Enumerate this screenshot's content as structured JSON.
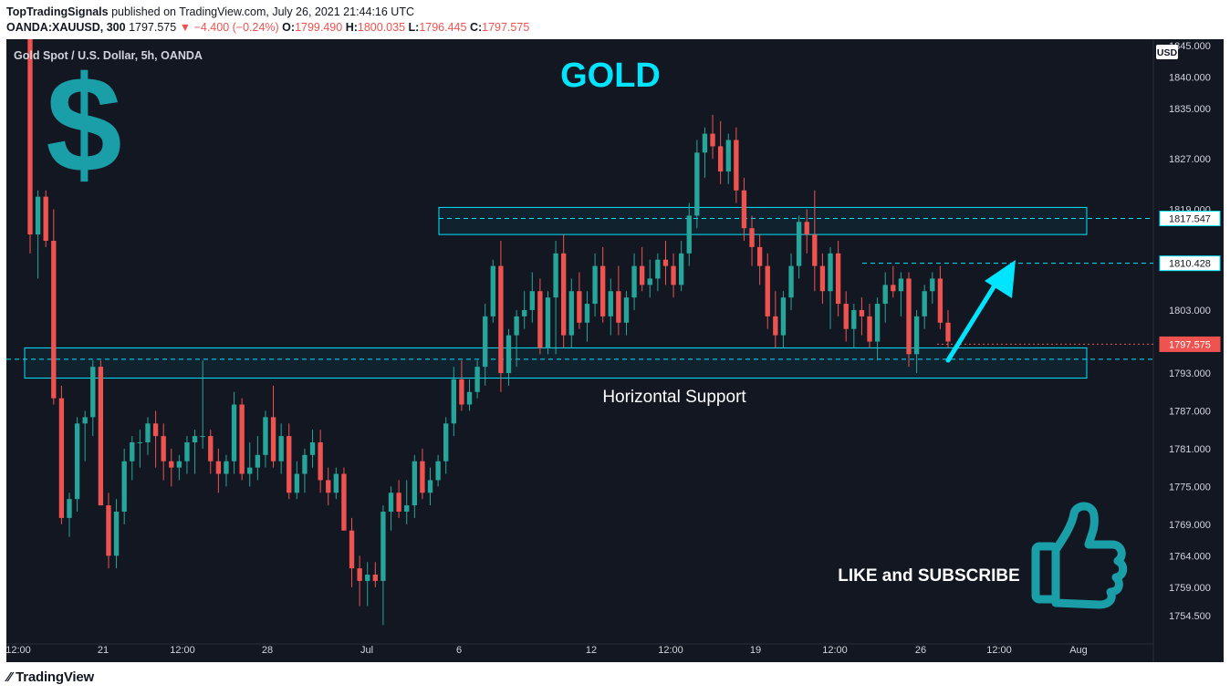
{
  "header": {
    "publisher": "TopTradingSignals",
    "published_text": "published on TradingView.com, July 26, 2021 21:44:16 UTC",
    "symbol": "OANDA:XAUUSD, 300",
    "last": "1797.575",
    "change": "−4.400 (−0.24%)",
    "o_label": "O:",
    "o": "1799.490",
    "h_label": "H:",
    "h": "1800.035",
    "l_label": "L:",
    "l": "1796.445",
    "c_label": "C:",
    "c": "1797.575"
  },
  "footer": {
    "logo_text": "TradingView"
  },
  "colors": {
    "background": "#131722",
    "up": "#26a69a",
    "down": "#ef5350",
    "cyan": "#00e5ff",
    "dollar": "#1a9ea8",
    "thumb": "#1a9ea8"
  },
  "chart_data": {
    "type": "candlestick",
    "title": "Gold Spot / U.S. Dollar, 5h, OANDA",
    "headline": "GOLD",
    "currency_label": "USD",
    "ylim": [
      1750.0,
      1846.0
    ],
    "y_ticks": [
      "1845.000",
      "1840.000",
      "1835.000",
      "1827.000",
      "1819.000",
      "1803.000",
      "1793.000",
      "1787.000",
      "1781.000",
      "1775.000",
      "1769.000",
      "1764.000",
      "1759.000",
      "1754.500"
    ],
    "x_ticks": [
      "12:00",
      "21",
      "12:00",
      "28",
      "Jul",
      "6",
      "12",
      "12:00",
      "19",
      "12:00",
      "26",
      "12:00",
      "Aug"
    ],
    "price_labels": [
      {
        "value": "1817.547",
        "style": "cyan"
      },
      {
        "value": "1810.428",
        "style": "cyan"
      },
      {
        "value": "1797.575",
        "style": "red"
      }
    ],
    "resistance_zone": [
      1815.0,
      1819.3
    ],
    "support_zone": [
      1792.2,
      1797.0
    ],
    "annotations": [
      "Horizontal Support",
      "LIKE and SUBSCRIBE"
    ],
    "ohlc": [
      [
        1846,
        1846,
        1812,
        1815
      ],
      [
        1815,
        1822,
        1808,
        1821
      ],
      [
        1821,
        1822,
        1813,
        1814
      ],
      [
        1814,
        1819,
        1788,
        1789
      ],
      [
        1789,
        1791,
        1769,
        1770
      ],
      [
        1770,
        1774,
        1767,
        1773
      ],
      [
        1773,
        1786,
        1771,
        1785
      ],
      [
        1785,
        1787,
        1779,
        1786
      ],
      [
        1786,
        1795,
        1783,
        1794
      ],
      [
        1794,
        1795,
        1772,
        1772
      ],
      [
        1772,
        1774,
        1762,
        1764
      ],
      [
        1764,
        1773,
        1762,
        1771
      ],
      [
        1771,
        1781,
        1769,
        1779
      ],
      [
        1779,
        1783,
        1776,
        1782
      ],
      [
        1782,
        1784,
        1778,
        1782
      ],
      [
        1782,
        1786,
        1780,
        1785
      ],
      [
        1785,
        1787,
        1778,
        1783
      ],
      [
        1783,
        1785,
        1776,
        1779
      ],
      [
        1779,
        1781,
        1775,
        1778
      ],
      [
        1778,
        1780,
        1776,
        1779
      ],
      [
        1779,
        1783,
        1777,
        1782
      ],
      [
        1782,
        1784,
        1777,
        1783
      ],
      [
        1783,
        1795,
        1781,
        1783
      ],
      [
        1783,
        1784,
        1777,
        1779
      ],
      [
        1779,
        1781,
        1774,
        1777
      ],
      [
        1777,
        1780,
        1775,
        1779
      ],
      [
        1779,
        1790,
        1777,
        1788
      ],
      [
        1788,
        1789,
        1776,
        1777
      ],
      [
        1777,
        1782,
        1775,
        1778
      ],
      [
        1778,
        1783,
        1776,
        1780
      ],
      [
        1780,
        1787,
        1778,
        1786
      ],
      [
        1786,
        1791,
        1778,
        1779
      ],
      [
        1779,
        1785,
        1777,
        1783
      ],
      [
        1783,
        1785,
        1773,
        1774
      ],
      [
        1774,
        1779,
        1773,
        1777
      ],
      [
        1777,
        1781,
        1774,
        1780
      ],
      [
        1780,
        1784,
        1778,
        1782
      ],
      [
        1782,
        1784,
        1774,
        1776
      ],
      [
        1776,
        1778,
        1772,
        1774
      ],
      [
        1774,
        1778,
        1773,
        1777
      ],
      [
        1777,
        1778,
        1768,
        1768
      ],
      [
        1768,
        1770,
        1759,
        1762
      ],
      [
        1762,
        1764,
        1756,
        1760
      ],
      [
        1760,
        1763,
        1756,
        1761
      ],
      [
        1761,
        1763,
        1759,
        1760
      ],
      [
        1760,
        1772,
        1753,
        1771
      ],
      [
        1771,
        1775,
        1768,
        1774
      ],
      [
        1774,
        1776,
        1770,
        1771
      ],
      [
        1771,
        1776,
        1769,
        1772
      ],
      [
        1772,
        1780,
        1770,
        1779
      ],
      [
        1779,
        1781,
        1773,
        1774
      ],
      [
        1774,
        1778,
        1772,
        1776
      ],
      [
        1776,
        1780,
        1775,
        1779
      ],
      [
        1779,
        1786,
        1777,
        1785
      ],
      [
        1785,
        1794,
        1783,
        1792
      ],
      [
        1792,
        1795,
        1787,
        1788
      ],
      [
        1788,
        1792,
        1787,
        1790
      ],
      [
        1790,
        1795,
        1789,
        1794
      ],
      [
        1794,
        1804,
        1791,
        1802
      ],
      [
        1802,
        1811,
        1801,
        1810
      ],
      [
        1810,
        1814,
        1790,
        1793
      ],
      [
        1793,
        1800,
        1791,
        1799
      ],
      [
        1799,
        1803,
        1794,
        1802
      ],
      [
        1802,
        1806,
        1800,
        1803
      ],
      [
        1803,
        1809,
        1801,
        1806
      ],
      [
        1806,
        1808,
        1796,
        1797
      ],
      [
        1797,
        1806,
        1796,
        1805
      ],
      [
        1805,
        1814,
        1796,
        1812
      ],
      [
        1812,
        1815,
        1797,
        1799
      ],
      [
        1799,
        1808,
        1797,
        1806
      ],
      [
        1806,
        1809,
        1800,
        1801
      ],
      [
        1801,
        1806,
        1798,
        1804
      ],
      [
        1804,
        1812,
        1802,
        1810
      ],
      [
        1810,
        1813,
        1801,
        1802
      ],
      [
        1802,
        1808,
        1799,
        1806
      ],
      [
        1806,
        1810,
        1799,
        1801
      ],
      [
        1801,
        1806,
        1799,
        1805
      ],
      [
        1805,
        1812,
        1803,
        1810
      ],
      [
        1810,
        1813,
        1806,
        1807
      ],
      [
        1807,
        1811,
        1805,
        1808
      ],
      [
        1808,
        1812,
        1806,
        1811
      ],
      [
        1811,
        1814,
        1807,
        1810
      ],
      [
        1810,
        1812,
        1805,
        1807
      ],
      [
        1807,
        1814,
        1806,
        1812
      ],
      [
        1812,
        1820,
        1810,
        1818
      ],
      [
        1818,
        1830,
        1816,
        1828
      ],
      [
        1828,
        1832,
        1824,
        1831
      ],
      [
        1831,
        1834,
        1827,
        1829
      ],
      [
        1829,
        1833,
        1823,
        1825
      ],
      [
        1825,
        1831,
        1823,
        1830
      ],
      [
        1830,
        1832,
        1820,
        1822
      ],
      [
        1822,
        1824,
        1814,
        1816
      ],
      [
        1816,
        1818,
        1810,
        1813
      ],
      [
        1813,
        1815,
        1807,
        1810
      ],
      [
        1810,
        1812,
        1800,
        1802
      ],
      [
        1802,
        1806,
        1797,
        1799
      ],
      [
        1799,
        1806,
        1797,
        1805
      ],
      [
        1805,
        1812,
        1803,
        1810
      ],
      [
        1810,
        1818,
        1808,
        1817
      ],
      [
        1817,
        1819,
        1812,
        1815
      ],
      [
        1815,
        1822,
        1806,
        1810
      ],
      [
        1810,
        1812,
        1804,
        1806
      ],
      [
        1806,
        1813,
        1800,
        1812
      ],
      [
        1812,
        1814,
        1802,
        1804
      ],
      [
        1804,
        1806,
        1798,
        1800
      ],
      [
        1800,
        1804,
        1797,
        1803
      ],
      [
        1803,
        1805,
        1799,
        1802
      ],
      [
        1802,
        1804,
        1797,
        1798
      ],
      [
        1798,
        1805,
        1795,
        1804
      ],
      [
        1804,
        1809,
        1801,
        1807
      ],
      [
        1807,
        1810,
        1805,
        1806
      ],
      [
        1806,
        1809,
        1802,
        1808
      ],
      [
        1808,
        1809,
        1794,
        1796
      ],
      [
        1796,
        1803,
        1793,
        1802
      ],
      [
        1802,
        1807,
        1800,
        1806
      ],
      [
        1806,
        1809,
        1804,
        1808
      ],
      [
        1808,
        1810,
        1800,
        1801
      ],
      [
        1801,
        1803,
        1797,
        1798
      ]
    ]
  }
}
